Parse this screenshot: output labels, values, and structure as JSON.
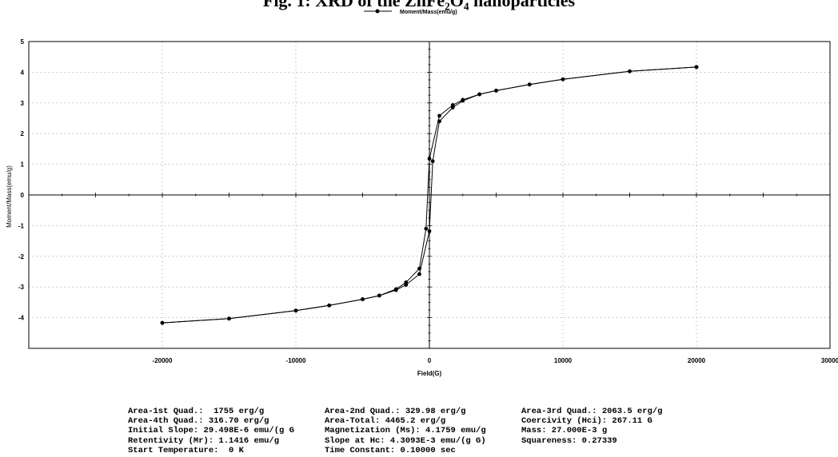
{
  "figure": {
    "caption": "Fig. 1: XRD of the ZnFe₂O₄ nanoparticles"
  },
  "chart_data": {
    "type": "line",
    "xlabel": "Field(G)",
    "ylabel": "Moment/Mass(emu/g)",
    "legend_position": "top-center",
    "grid": true,
    "xlim": [
      -30000,
      30000
    ],
    "ylim": [
      -5,
      5
    ],
    "x_ticks": [
      -20000,
      -10000,
      0,
      10000,
      20000,
      30000
    ],
    "y_ticks": [
      -4,
      -3,
      -2,
      -1,
      0,
      1,
      2,
      3,
      4,
      5
    ],
    "x_tick_labels": [
      "-20000",
      "-10000",
      "0",
      "10000",
      "20000",
      "30000"
    ],
    "y_tick_labels": [
      "-4",
      "-3",
      "-2",
      "-1",
      "0",
      "1",
      "2",
      "3",
      "4",
      "5"
    ],
    "series": [
      {
        "name": "Moment/Mass(emu/g)",
        "color": "#000000",
        "marker": "circle",
        "descending": {
          "x": [
            20000,
            15000,
            10000,
            7500,
            5000,
            3750,
            2500,
            1750,
            750,
            0,
            -250,
            -750,
            -1750,
            -2500,
            -3750,
            -5000,
            -7500,
            -10000,
            -15000,
            -20000
          ],
          "y": [
            4.17,
            4.03,
            3.77,
            3.6,
            3.4,
            3.28,
            3.1,
            2.93,
            2.58,
            1.18,
            -1.1,
            -2.4,
            -2.85,
            -3.07,
            -3.28,
            -3.4,
            -3.6,
            -3.77,
            -4.03,
            -4.17
          ]
        },
        "ascending": {
          "x": [
            -20000,
            -15000,
            -10000,
            -7500,
            -5000,
            -3750,
            -2500,
            -1750,
            -750,
            0,
            250,
            750,
            1750,
            2500,
            3750,
            5000,
            7500,
            10000,
            15000,
            20000
          ],
          "y": [
            -4.17,
            -4.03,
            -3.77,
            -3.6,
            -3.4,
            -3.28,
            -3.1,
            -2.93,
            -2.58,
            -1.18,
            1.1,
            2.4,
            2.85,
            3.07,
            3.28,
            3.4,
            3.6,
            3.77,
            4.03,
            4.17
          ]
        }
      }
    ]
  },
  "stats": {
    "rows": [
      [
        "Area-1st Quad.:  1755 erg/g",
        "Area-2nd Quad.: 329.98 erg/g",
        "Area-3rd Quad.: 2063.5 erg/g"
      ],
      [
        "Area-4th Quad.: 316.70 erg/g",
        "Area-Total: 4465.2 erg/g",
        "Coercivity (Hci): 267.11 G"
      ],
      [
        "Initial Slope: 29.498E-6 emu/(g G",
        "Magnetization (Ms): 4.1759 emu/g",
        "Mass: 27.000E-3 g"
      ],
      [
        "Retentivity (Mr): 1.1416 emu/g",
        "Slope at Hc: 4.3093E-3 emu/(g G)",
        "Squareness: 0.27339"
      ],
      [
        "Start Temperature:  0 K",
        "Time Constant: 0.10000 sec",
        ""
      ]
    ]
  }
}
